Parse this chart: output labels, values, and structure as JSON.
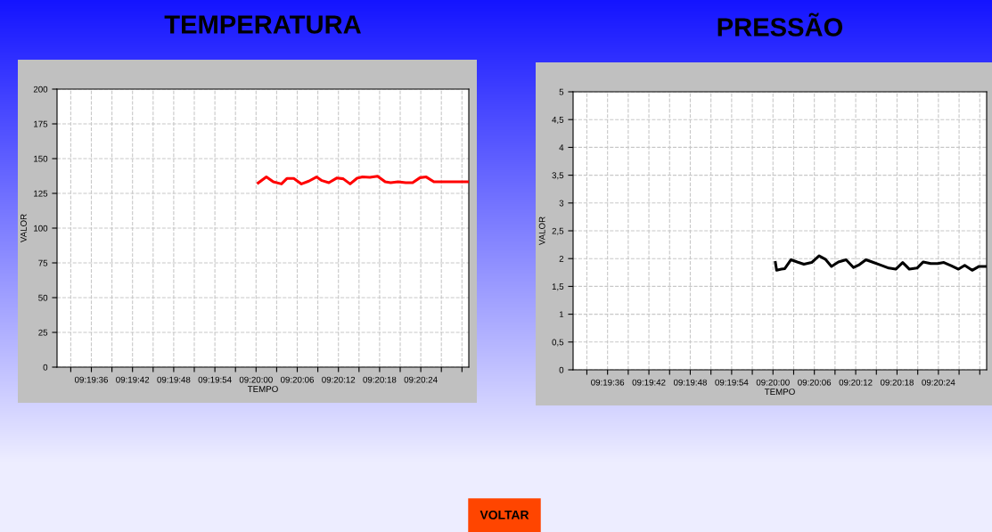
{
  "chart_data": [
    {
      "type": "line",
      "title": "TEMPERATURA",
      "xlabel": "TEMPO",
      "ylabel": "VALOR",
      "x": [
        9.33342,
        9.33375,
        9.33403,
        9.33436,
        9.33458,
        9.33486,
        9.33517,
        9.33547,
        9.33578,
        9.336,
        9.33628,
        9.33661,
        9.33686,
        9.33714,
        9.33742,
        9.33764,
        9.33794,
        9.33825,
        9.33856,
        9.33878,
        9.33908,
        9.33939,
        9.33967,
        9.33997,
        9.34022,
        9.34053,
        9.34194
      ],
      "series": [
        {
          "color": "#ff0000",
          "values": [
            132.5,
            136.8,
            133.3,
            131.8,
            135.7,
            135.7,
            131.8,
            133.8,
            136.8,
            134.2,
            132.7,
            136.1,
            135.5,
            131.8,
            135.9,
            136.8,
            136.5,
            137.4,
            133.3,
            132.7,
            133.3,
            132.7,
            132.7,
            136.3,
            136.8,
            133.3,
            133.3
          ]
        }
      ],
      "xlim": [
        9.325278,
        9.341944
      ],
      "ylim": [
        0,
        200
      ],
      "xticks": [
        {
          "value": 9.325833,
          "label": null
        },
        {
          "value": 9.326667,
          "label": "09:19:36"
        },
        {
          "value": 9.3275,
          "label": null
        },
        {
          "value": 9.328333,
          "label": "09:19:42"
        },
        {
          "value": 9.329167,
          "label": null
        },
        {
          "value": 9.33,
          "label": "09:19:48"
        },
        {
          "value": 9.330833,
          "label": null
        },
        {
          "value": 9.331667,
          "label": "09:19:54"
        },
        {
          "value": 9.3325,
          "label": null
        },
        {
          "value": 9.333333,
          "label": "09:20:00"
        },
        {
          "value": 9.334167,
          "label": null
        },
        {
          "value": 9.335,
          "label": "09:20:06"
        },
        {
          "value": 9.335833,
          "label": null
        },
        {
          "value": 9.336667,
          "label": "09:20:12"
        },
        {
          "value": 9.3375,
          "label": null
        },
        {
          "value": 9.338333,
          "label": "09:20:18"
        },
        {
          "value": 9.339167,
          "label": null
        },
        {
          "value": 9.34,
          "label": "09:20:24"
        },
        {
          "value": 9.340833,
          "label": null
        },
        {
          "value": 9.341667,
          "label": null
        }
      ],
      "yticks": [
        0,
        25,
        50,
        75,
        100,
        125,
        150,
        175,
        200
      ],
      "grid": true,
      "line_style": "solid"
    },
    {
      "type": "line",
      "title": "PRESSÃO",
      "xlabel": "TEMPO",
      "ylabel": "VALOR",
      "x": [
        9.33343,
        9.33348,
        9.33367,
        9.33381,
        9.33406,
        9.33431,
        9.33458,
        9.33489,
        9.33519,
        9.33544,
        9.33569,
        9.33597,
        9.33628,
        9.33658,
        9.33681,
        9.33708,
        9.33733,
        9.33764,
        9.338,
        9.33828,
        9.33856,
        9.33883,
        9.33914,
        9.33939,
        9.33969,
        9.33997,
        9.34022,
        9.34053,
        9.34081,
        9.34106,
        9.34136,
        9.34164,
        9.34194
      ],
      "series": [
        {
          "color": "#000000",
          "values": [
            1.93,
            1.79,
            1.81,
            1.82,
            1.98,
            1.94,
            1.9,
            1.93,
            2.05,
            1.99,
            1.86,
            1.94,
            1.98,
            1.84,
            1.89,
            1.98,
            1.94,
            1.89,
            1.83,
            1.81,
            1.93,
            1.81,
            1.83,
            1.94,
            1.91,
            1.91,
            1.93,
            1.87,
            1.81,
            1.88,
            1.79,
            1.86,
            1.86
          ]
        }
      ],
      "xlim": [
        9.325278,
        9.341944
      ],
      "ylim": [
        0,
        5
      ],
      "xticks": [
        {
          "value": 9.325833,
          "label": null
        },
        {
          "value": 9.326667,
          "label": "09:19:36"
        },
        {
          "value": 9.3275,
          "label": null
        },
        {
          "value": 9.328333,
          "label": "09:19:42"
        },
        {
          "value": 9.329167,
          "label": null
        },
        {
          "value": 9.33,
          "label": "09:19:48"
        },
        {
          "value": 9.330833,
          "label": null
        },
        {
          "value": 9.331667,
          "label": "09:19:54"
        },
        {
          "value": 9.3325,
          "label": null
        },
        {
          "value": 9.333333,
          "label": "09:20:00"
        },
        {
          "value": 9.334167,
          "label": null
        },
        {
          "value": 9.335,
          "label": "09:20:06"
        },
        {
          "value": 9.335833,
          "label": null
        },
        {
          "value": 9.336667,
          "label": "09:20:12"
        },
        {
          "value": 9.3375,
          "label": null
        },
        {
          "value": 9.338333,
          "label": "09:20:18"
        },
        {
          "value": 9.339167,
          "label": null
        },
        {
          "value": 9.34,
          "label": "09:20:24"
        },
        {
          "value": 9.340833,
          "label": null
        },
        {
          "value": 9.341667,
          "label": null
        }
      ],
      "yticks": [
        0,
        {
          "value": 0.5,
          "label": "0,5"
        },
        1,
        {
          "value": 1.5,
          "label": "1,5"
        },
        2,
        {
          "value": 2.5,
          "label": "2,5"
        },
        3,
        {
          "value": 3.5,
          "label": "3,5"
        },
        4,
        {
          "value": 4.5,
          "label": "4,5"
        },
        5
      ],
      "grid": true,
      "line_style": "solid"
    },
    {
      "type": "other",
      "annotations": [
        "VOLTAR"
      ]
    }
  ]
}
